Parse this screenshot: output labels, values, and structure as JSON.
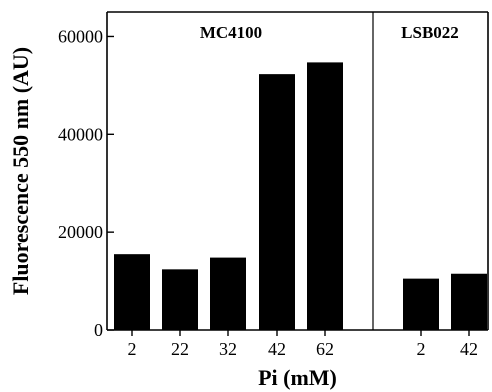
{
  "chart_data": {
    "type": "bar",
    "xlabel": "Pi (mM)",
    "ylabel": "Fluorescence 550 nm (AU)",
    "ylim": [
      0,
      65000
    ],
    "yticks": [
      0,
      20000,
      40000,
      60000
    ],
    "groups": [
      {
        "name": "MC4100",
        "categories": [
          "2",
          "22",
          "32",
          "42",
          "62"
        ],
        "values": [
          15500,
          12400,
          14800,
          52300,
          54700
        ]
      },
      {
        "name": "LSB022",
        "categories": [
          "2",
          "42"
        ],
        "values": [
          10500,
          11500
        ]
      }
    ],
    "colors": {
      "bar": "#000000"
    },
    "grid": false
  }
}
